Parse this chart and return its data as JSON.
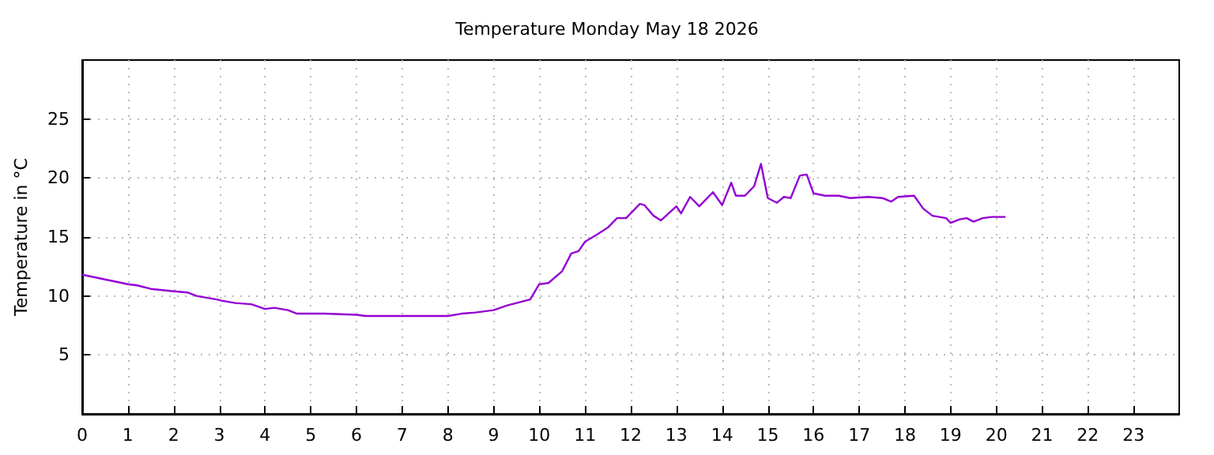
{
  "chart_data": {
    "type": "line",
    "title": "Temperature Monday May 18 2026",
    "ylabel": "Temperature in °C",
    "xlim": [
      0,
      24
    ],
    "xticks": [
      0,
      1,
      2,
      3,
      4,
      5,
      6,
      7,
      8,
      9,
      10,
      11,
      12,
      13,
      14,
      15,
      16,
      17,
      18,
      19,
      20,
      21,
      22,
      23
    ],
    "ylim": [
      0,
      30
    ],
    "yticks": [
      5,
      10,
      15,
      20,
      25
    ],
    "grid": true,
    "marker": "none",
    "x": [
      0,
      0.5,
      1.0,
      1.2,
      1.5,
      2.0,
      2.3,
      2.5,
      2.95,
      3.05,
      3.35,
      3.7,
      4.0,
      4.2,
      4.5,
      4.7,
      5.3,
      6.0,
      6.2,
      8.0,
      8.3,
      8.6,
      9.0,
      9.3,
      9.6,
      9.8,
      10.0,
      10.2,
      10.5,
      10.7,
      10.86,
      11.0,
      11.26,
      11.5,
      11.7,
      11.9,
      12.2,
      12.3,
      12.5,
      12.66,
      13.0,
      13.1,
      13.3,
      13.5,
      13.8,
      14.0,
      14.2,
      14.3,
      14.5,
      14.7,
      14.85,
      15.0,
      15.2,
      15.35,
      15.5,
      15.7,
      15.85,
      16.0,
      16.25,
      16.55,
      16.8,
      17.2,
      17.5,
      17.7,
      17.85,
      18.2,
      18.4,
      18.6,
      18.9,
      19.0,
      19.2,
      19.35,
      19.5,
      19.7,
      19.9,
      20.2
    ],
    "series": [
      {
        "color": "#9400d3",
        "values": [
          11.8,
          11.4,
          11.0,
          10.9,
          10.6,
          10.4,
          10.3,
          10.0,
          9.7,
          9.6,
          9.4,
          9.3,
          8.9,
          9.0,
          8.8,
          8.5,
          8.5,
          8.4,
          8.3,
          8.3,
          8.5,
          8.6,
          8.8,
          9.2,
          9.5,
          9.7,
          11.0,
          11.1,
          12.1,
          13.6,
          13.8,
          14.6,
          15.2,
          15.8,
          16.6,
          16.6,
          17.8,
          17.7,
          16.8,
          16.4,
          17.6,
          17.0,
          18.4,
          17.6,
          18.8,
          17.7,
          19.6,
          18.5,
          18.5,
          19.3,
          21.2,
          18.3,
          17.9,
          18.4,
          18.3,
          20.2,
          20.3,
          18.7,
          18.5,
          18.5,
          18.3,
          18.4,
          18.3,
          18.0,
          18.4,
          18.5,
          17.4,
          16.8,
          16.6,
          16.2,
          16.5,
          16.6,
          16.3,
          16.6,
          16.7,
          16.7
        ]
      }
    ]
  }
}
